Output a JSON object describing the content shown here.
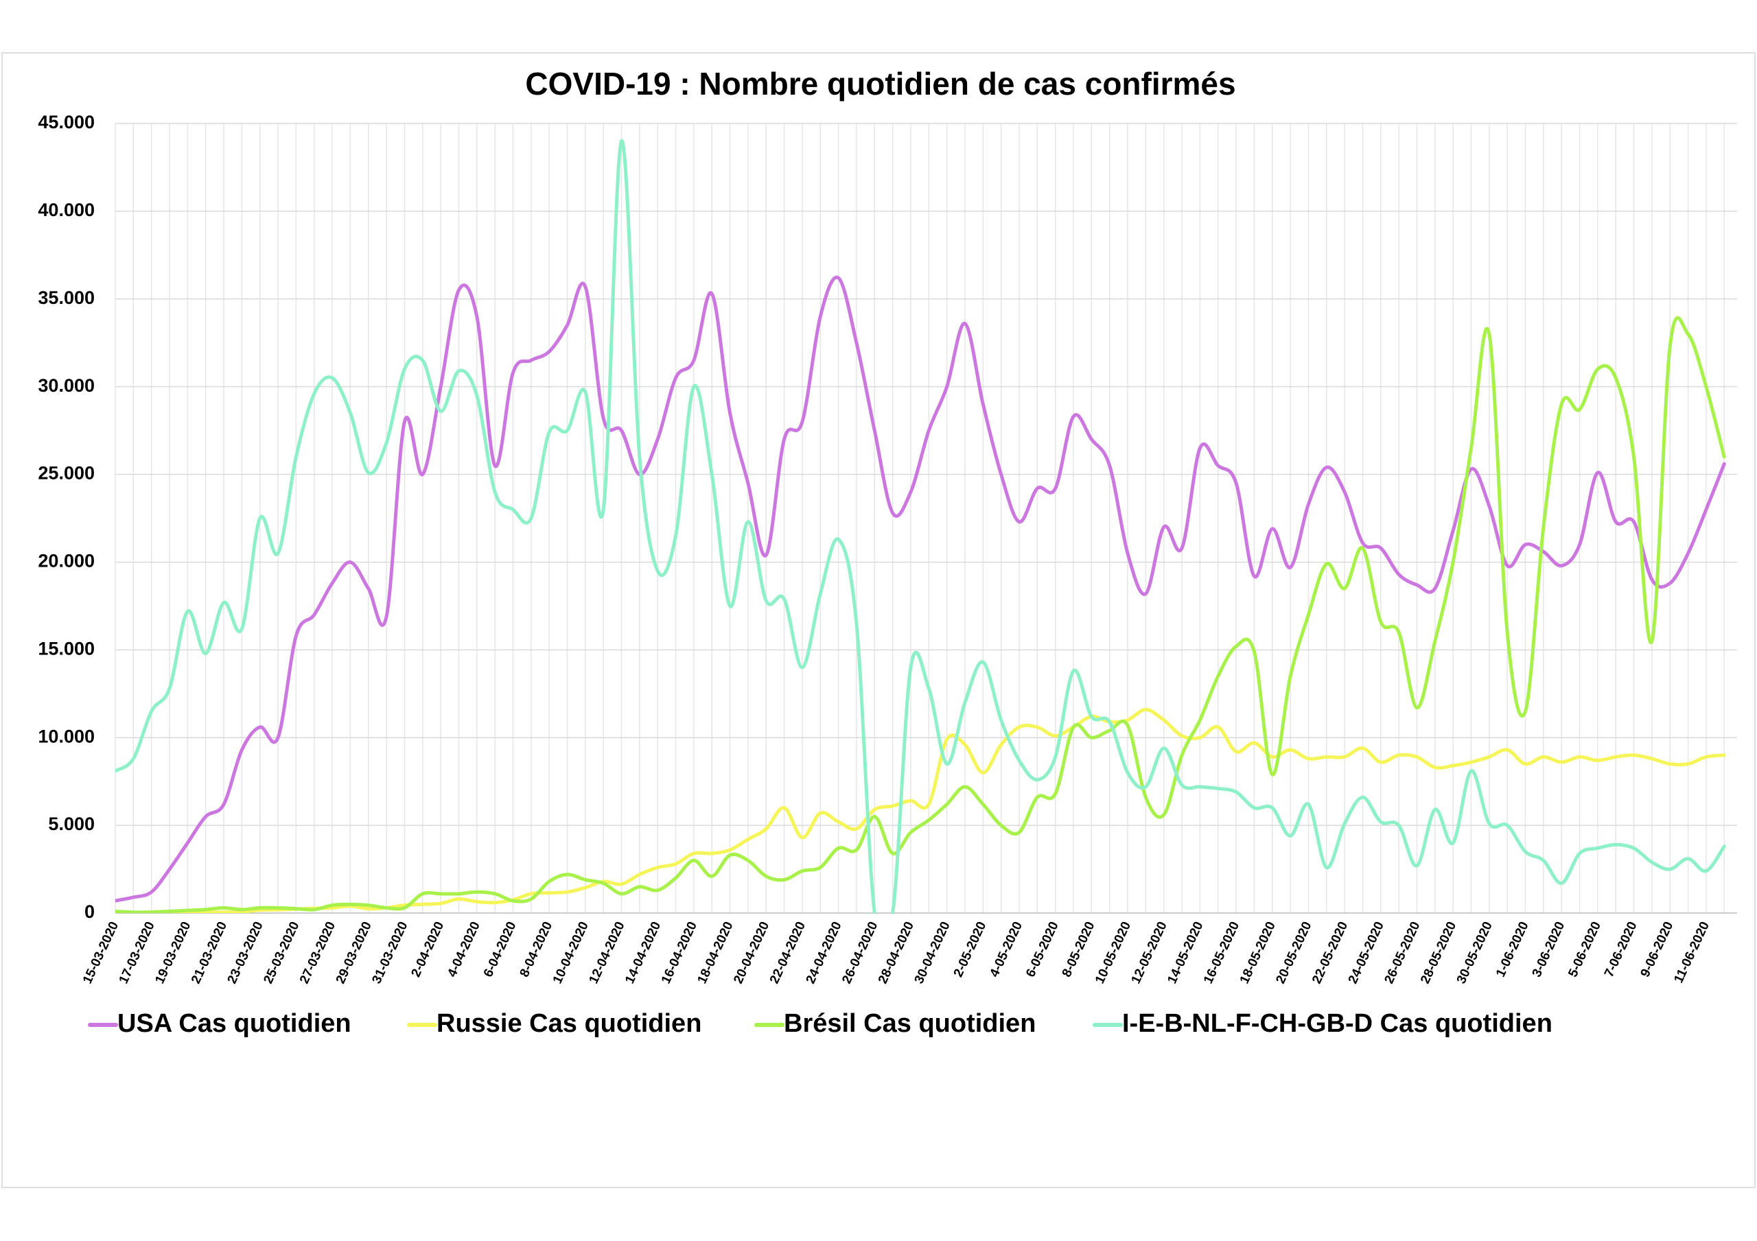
{
  "chart_data": {
    "type": "line",
    "title": "COVID-19 : Nombre quotidien de cas confirmés",
    "categories": [
      "15-03-2020",
      null,
      "17-03-2020",
      null,
      "19-03-2020",
      null,
      "21-03-2020",
      null,
      "23-03-2020",
      null,
      "25-03-2020",
      null,
      "27-03-2020",
      null,
      "29-03-2020",
      null,
      "31-03-2020",
      null,
      "2-04-2020",
      null,
      "4-04-2020",
      null,
      "6-04-2020",
      null,
      "8-04-2020",
      null,
      "10-04-2020",
      null,
      "12-04-2020",
      null,
      "14-04-2020",
      null,
      "16-04-2020",
      null,
      "18-04-2020",
      null,
      "20-04-2020",
      null,
      "22-04-2020",
      null,
      "24-04-2020",
      null,
      "26-04-2020",
      null,
      "28-04-2020",
      null,
      "30-04-2020",
      null,
      "2-05-2020",
      null,
      "4-05-2020",
      null,
      "6-05-2020",
      null,
      "8-05-2020",
      null,
      "10-05-2020",
      null,
      "12-05-2020",
      null,
      "14-05-2020",
      null,
      "16-05-2020",
      null,
      "18-05-2020",
      null,
      "20-05-2020",
      null,
      "22-05-2020",
      null,
      "24-05-2020",
      null,
      "26-05-2020",
      null,
      "28-05-2020",
      null,
      "30-05-2020",
      null,
      "1-06-2020",
      null,
      "3-06-2020",
      null,
      "5-06-2020",
      null,
      "7-06-2020",
      null,
      "9-06-2020",
      null,
      "11-06-2020",
      null
    ],
    "series": [
      {
        "name": "USA Cas quotidien",
        "color": "#cc77e0",
        "values": [
          700,
          900,
          1200,
          2500,
          4000,
          5500,
          6200,
          9300,
          10600,
          10000,
          15800,
          17000,
          18800,
          20000,
          18500,
          16900,
          28000,
          25000,
          30000,
          35500,
          34000,
          25500,
          30800,
          31500,
          32000,
          33500,
          35700,
          28200,
          27500,
          25000,
          27000,
          30500,
          31500,
          35300,
          28500,
          24500,
          20400,
          27000,
          28000,
          34000,
          36200,
          32500,
          27500,
          22800,
          24000,
          27500,
          30000,
          33600,
          29000,
          25000,
          22300,
          24200,
          24200,
          28300,
          27000,
          25500,
          20500,
          18200,
          22000,
          20800,
          26500,
          25500,
          24500,
          19200,
          21900,
          19700,
          23300,
          25400,
          24000,
          21100,
          20800,
          19300,
          18700,
          18500,
          21800,
          25300,
          23200,
          19800,
          21000,
          20600,
          19800,
          21000,
          25100,
          22300,
          22300,
          19000,
          18800,
          20500,
          23000,
          25600
        ]
      },
      {
        "name": "Russie Cas quotidien",
        "color": "#f5f55a",
        "values": [
          60,
          30,
          60,
          90,
          60,
          50,
          50,
          70,
          170,
          190,
          230,
          270,
          300,
          400,
          250,
          300,
          450,
          500,
          550,
          800,
          650,
          600,
          750,
          1100,
          1150,
          1200,
          1450,
          1800,
          1650,
          2200,
          2600,
          2800,
          3400,
          3400,
          3600,
          4200,
          4800,
          6000,
          4300,
          5700,
          5200,
          4800,
          5900,
          6100,
          6400,
          6200,
          9900,
          9600,
          8000,
          9600,
          10600,
          10600,
          10100,
          10600,
          11200,
          10900,
          11000,
          11600,
          11000,
          10100,
          10000,
          10600,
          9200,
          9700,
          8900,
          9300,
          8800,
          8900,
          8900,
          9400,
          8600,
          9000,
          8900,
          8300,
          8400,
          8600,
          8900,
          9300,
          8500,
          8900,
          8600,
          8900,
          8700,
          8900,
          9000,
          8800,
          8500,
          8500,
          8900,
          9000
        ]
      },
      {
        "name": "Brésil Cas quotidien",
        "color": "#a8f04a",
        "values": [
          100,
          50,
          50,
          100,
          150,
          200,
          300,
          200,
          300,
          300,
          250,
          200,
          450,
          500,
          450,
          300,
          300,
          1100,
          1100,
          1100,
          1200,
          1100,
          700,
          800,
          1800,
          2200,
          1900,
          1700,
          1100,
          1500,
          1300,
          2000,
          3000,
          2100,
          3300,
          3000,
          2100,
          1900,
          2400,
          2600,
          3700,
          3600,
          5500,
          3400,
          4600,
          5300,
          6200,
          7200,
          6200,
          5000,
          4600,
          6600,
          6800,
          10600,
          10000,
          10400,
          10700,
          6600,
          5600,
          9000,
          11000,
          13500,
          15200,
          14900,
          7900,
          13500,
          17000,
          19900,
          18500,
          20800,
          16600,
          16000,
          11700,
          15500,
          20000,
          26500,
          33000,
          16000,
          11500,
          22000,
          29000,
          28700,
          31000,
          30500,
          26000,
          15500,
          32300,
          33000,
          30000,
          26000
        ]
      },
      {
        "name": "I-E-B-NL-F-CH-GB-D Cas quotidien",
        "color": "#8ef0c8",
        "values": [
          8100,
          8800,
          11500,
          12800,
          17200,
          14800,
          17700,
          16200,
          22500,
          20500,
          26000,
          29600,
          30500,
          28500,
          25100,
          26800,
          31000,
          31500,
          28600,
          30900,
          29500,
          24000,
          23000,
          22500,
          27400,
          27500,
          29700,
          23000,
          44000,
          26000,
          19500,
          21500,
          30000,
          25000,
          17500,
          22300,
          17800,
          17900,
          14000,
          18200,
          21300,
          16500,
          0,
          0,
          14000,
          12800,
          8500,
          12000,
          14300,
          11000,
          8700,
          7600,
          8900,
          13800,
          11200,
          10900,
          8000,
          7200,
          9400,
          7300,
          7200,
          7100,
          6900,
          6000,
          6000,
          4400,
          6200,
          2600,
          5100,
          6600,
          5200,
          5000,
          2700,
          5900,
          4000,
          8100,
          5100,
          5000,
          3500,
          3000,
          1700,
          3400,
          3700,
          3900,
          3700,
          2900,
          2500,
          3100,
          2400,
          3800
        ]
      }
    ],
    "ylim": [
      0,
      45000
    ],
    "yticks": [
      0,
      {
        "value": 5000,
        "label": "5.000"
      },
      {
        "value": 10000,
        "label": "10.000"
      },
      {
        "value": 15000,
        "label": "15.000"
      },
      {
        "value": 20000,
        "label": "20.000"
      },
      {
        "value": 25000,
        "label": "25.000"
      },
      {
        "value": 30000,
        "label": "30.000"
      },
      {
        "value": 35000,
        "label": "35.000"
      },
      {
        "value": 40000,
        "label": "40.000"
      },
      {
        "value": 45000,
        "label": "45.000"
      }
    ],
    "grid": true,
    "legend": "bottom"
  }
}
